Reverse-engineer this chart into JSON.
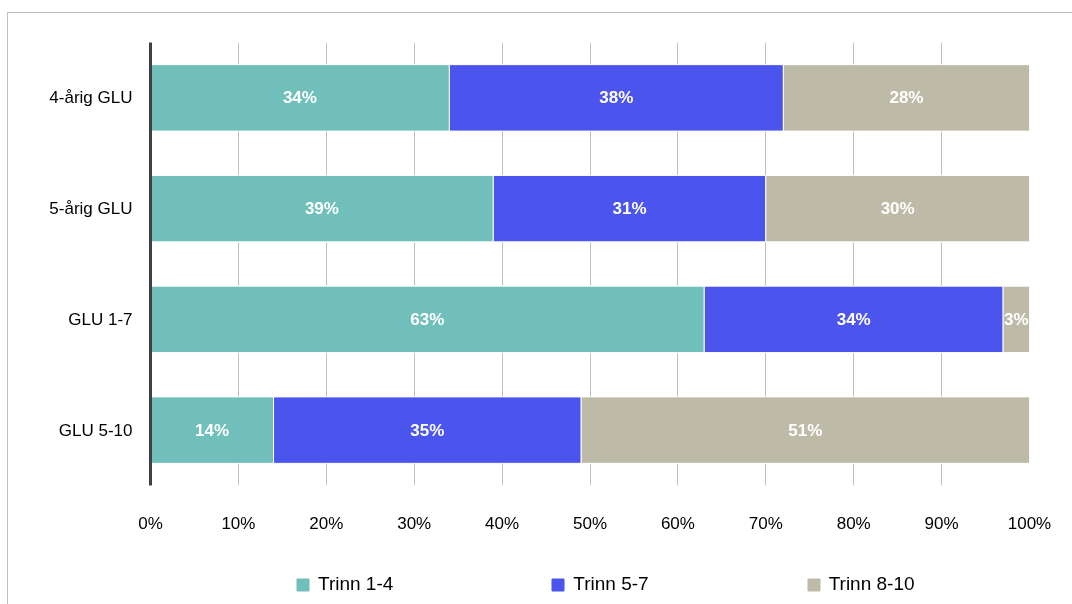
{
  "chart_data": {
    "type": "bar",
    "orientation": "horizontal",
    "stacked": true,
    "categories": [
      "4-årig GLU",
      "5-årig GLU",
      "GLU 1-7",
      "GLU 5-10"
    ],
    "series": [
      {
        "name": "Trinn 1-4",
        "color": "#70bfbb",
        "values": [
          34,
          39,
          63,
          14
        ],
        "value_labels": [
          "34%",
          "39%",
          "63%",
          "14%"
        ]
      },
      {
        "name": "Trinn 5-7",
        "color": "#4b54ec",
        "values": [
          38,
          31,
          34,
          35
        ],
        "value_labels": [
          "38%",
          "31%",
          "34%",
          "35%"
        ]
      },
      {
        "name": "Trinn 8-10",
        "color": "#bdbba8",
        "values": [
          28,
          30,
          3,
          51
        ],
        "value_labels": [
          "28%",
          "30%",
          "3%",
          "51%"
        ]
      }
    ],
    "xlim": [
      0,
      100
    ],
    "xticks": [
      {
        "value": 0,
        "label": "0%"
      },
      {
        "value": 10,
        "label": "10%"
      },
      {
        "value": 20,
        "label": "20%"
      },
      {
        "value": 30,
        "label": "30%"
      },
      {
        "value": 40,
        "label": "40%"
      },
      {
        "value": 50,
        "label": "50%"
      },
      {
        "value": 60,
        "label": "60%"
      },
      {
        "value": 70,
        "label": "70%"
      },
      {
        "value": 80,
        "label": "80%"
      },
      {
        "value": 90,
        "label": "90%"
      },
      {
        "value": 100,
        "label": "100%"
      }
    ],
    "grid": "x",
    "legend": "bottom"
  }
}
